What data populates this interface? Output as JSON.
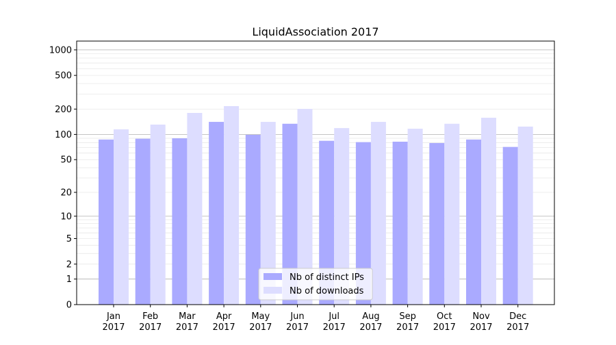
{
  "chart_data": {
    "type": "bar",
    "title": "LiquidAssociation 2017",
    "yscale": "log(1+y)",
    "ylim": [
      0,
      1270
    ],
    "yticks": [
      0,
      1,
      2,
      5,
      10,
      20,
      50,
      100,
      200,
      500,
      1000
    ],
    "grid": true,
    "legend_position": "bottom-center",
    "categories": [
      "Jan\n2017",
      "Feb\n2017",
      "Mar\n2017",
      "Apr\n2017",
      "May\n2017",
      "Jun\n2017",
      "Jul\n2017",
      "Aug\n2017",
      "Sep\n2017",
      "Oct\n2017",
      "Nov\n2017",
      "Dec\n2017"
    ],
    "series": [
      {
        "name": "Nb of distinct IPs",
        "color": "#aaaaff",
        "values": [
          87,
          89,
          90,
          141,
          99,
          134,
          84,
          81,
          82,
          79,
          87,
          71
        ]
      },
      {
        "name": "Nb of downloads",
        "color": "#ddddff",
        "values": [
          115,
          131,
          180,
          217,
          141,
          201,
          119,
          141,
          117,
          134,
          158,
          124
        ]
      }
    ]
  }
}
